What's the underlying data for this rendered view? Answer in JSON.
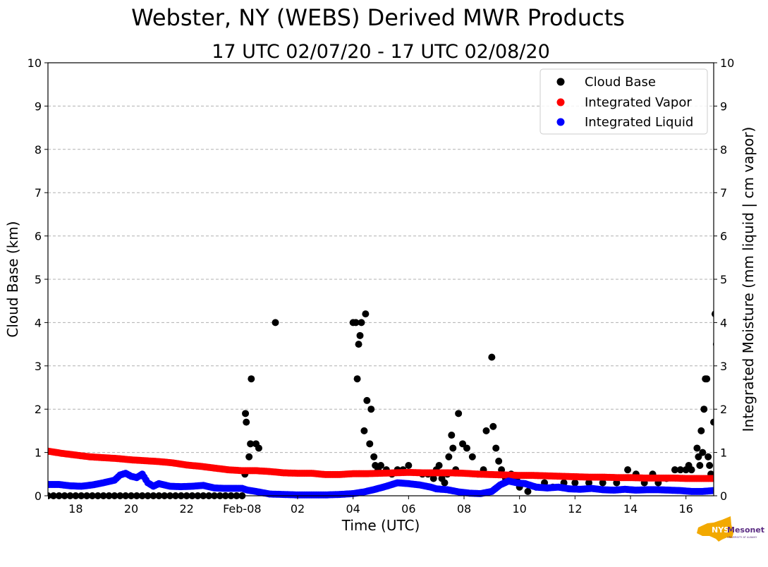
{
  "colors": {
    "cloud_base": "#000000",
    "integrated_vapor": "#ff0000",
    "integrated_liquid": "#0000ff",
    "grid": "#b0b0b0",
    "logo_state": "#f2a900",
    "logo_text": "#5b2c83"
  },
  "logo": {
    "prefix": "NYS",
    "name": "Mesonet",
    "sub": "UNIVERSITY AT ALBANY"
  },
  "chart_data": {
    "type": "scatter",
    "title": "Webster, NY (WEBS) Derived MWR Products",
    "subtitle": "17 UTC 02/07/20 - 17 UTC 02/08/20",
    "xlabel": "Time (UTC)",
    "ylabel": "Cloud Base (km)",
    "ylabel_right": "Integrated Moisture (mm liquid | cm vapor)",
    "xlim_hours": [
      17,
      41
    ],
    "ylim": [
      0,
      10
    ],
    "y2lim": [
      0,
      10
    ],
    "grid": true,
    "legend_position": "top-right",
    "x_ticks": [
      {
        "hour": 18,
        "label": "18"
      },
      {
        "hour": 20,
        "label": "20"
      },
      {
        "hour": 22,
        "label": "22"
      },
      {
        "hour": 24,
        "label": "Feb-08"
      },
      {
        "hour": 26,
        "label": "02"
      },
      {
        "hour": 28,
        "label": "04"
      },
      {
        "hour": 30,
        "label": "06"
      },
      {
        "hour": 32,
        "label": "08"
      },
      {
        "hour": 34,
        "label": "10"
      },
      {
        "hour": 36,
        "label": "12"
      },
      {
        "hour": 38,
        "label": "14"
      },
      {
        "hour": 40,
        "label": "16"
      }
    ],
    "y_ticks": [
      "0",
      "1",
      "2",
      "3",
      "4",
      "5",
      "6",
      "7",
      "8",
      "9",
      "10"
    ],
    "y2_ticks": [
      "0",
      "1",
      "2",
      "3",
      "4",
      "5",
      "6",
      "7",
      "8",
      "9",
      "10"
    ],
    "series": [
      {
        "name": "Cloud Base",
        "color": "#000000",
        "points": [
          [
            17.0,
            0
          ],
          [
            17.2,
            0
          ],
          [
            17.4,
            0
          ],
          [
            17.6,
            0
          ],
          [
            17.8,
            0
          ],
          [
            18.0,
            0
          ],
          [
            18.2,
            0
          ],
          [
            18.4,
            0
          ],
          [
            18.6,
            0
          ],
          [
            18.8,
            0
          ],
          [
            19.0,
            0
          ],
          [
            19.2,
            0
          ],
          [
            19.4,
            0
          ],
          [
            19.6,
            0
          ],
          [
            19.8,
            0
          ],
          [
            20.0,
            0
          ],
          [
            20.2,
            0
          ],
          [
            20.4,
            0
          ],
          [
            20.6,
            0
          ],
          [
            20.8,
            0
          ],
          [
            21.0,
            0
          ],
          [
            21.2,
            0
          ],
          [
            21.4,
            0
          ],
          [
            21.6,
            0
          ],
          [
            21.8,
            0
          ],
          [
            22.0,
            0
          ],
          [
            22.2,
            0
          ],
          [
            22.4,
            0
          ],
          [
            22.6,
            0
          ],
          [
            22.8,
            0
          ],
          [
            23.0,
            0
          ],
          [
            23.2,
            0
          ],
          [
            23.4,
            0
          ],
          [
            23.6,
            0
          ],
          [
            23.8,
            0
          ],
          [
            24.0,
            0
          ],
          [
            24.1,
            0.5
          ],
          [
            24.12,
            1.9
          ],
          [
            24.15,
            1.7
          ],
          [
            24.25,
            0.9
          ],
          [
            24.3,
            1.2
          ],
          [
            24.33,
            2.7
          ],
          [
            24.5,
            1.2
          ],
          [
            24.6,
            1.1
          ],
          [
            25.2,
            4.0
          ],
          [
            28.0,
            4.0
          ],
          [
            28.1,
            4.0
          ],
          [
            28.15,
            2.7
          ],
          [
            28.2,
            3.5
          ],
          [
            28.25,
            3.7
          ],
          [
            28.3,
            4.0
          ],
          [
            28.4,
            1.5
          ],
          [
            28.45,
            4.2
          ],
          [
            28.5,
            2.2
          ],
          [
            28.6,
            1.2
          ],
          [
            28.65,
            2.0
          ],
          [
            28.75,
            0.9
          ],
          [
            28.8,
            0.7
          ],
          [
            28.9,
            0.6
          ],
          [
            29.0,
            0.7
          ],
          [
            29.2,
            0.6
          ],
          [
            29.4,
            0.5
          ],
          [
            29.6,
            0.6
          ],
          [
            29.8,
            0.6
          ],
          [
            30.0,
            0.7
          ],
          [
            30.5,
            0.5
          ],
          [
            30.7,
            0.5
          ],
          [
            30.9,
            0.4
          ],
          [
            31.0,
            0.6
          ],
          [
            31.1,
            0.7
          ],
          [
            31.2,
            0.4
          ],
          [
            31.3,
            0.3
          ],
          [
            31.4,
            0.5
          ],
          [
            31.45,
            0.9
          ],
          [
            31.55,
            1.4
          ],
          [
            31.6,
            1.1
          ],
          [
            31.7,
            0.6
          ],
          [
            31.8,
            1.9
          ],
          [
            31.95,
            1.2
          ],
          [
            32.1,
            1.1
          ],
          [
            32.3,
            0.9
          ],
          [
            32.5,
            0.5
          ],
          [
            32.7,
            0.6
          ],
          [
            32.8,
            1.5
          ],
          [
            33.0,
            3.2
          ],
          [
            33.05,
            1.6
          ],
          [
            33.15,
            1.1
          ],
          [
            33.25,
            0.8
          ],
          [
            33.35,
            0.6
          ],
          [
            33.5,
            0.4
          ],
          [
            33.7,
            0.5
          ],
          [
            33.9,
            0.4
          ],
          [
            34.0,
            0.2
          ],
          [
            34.3,
            0.1
          ],
          [
            34.6,
            0.2
          ],
          [
            34.9,
            0.3
          ],
          [
            35.2,
            0.2
          ],
          [
            35.6,
            0.3
          ],
          [
            36.0,
            0.3
          ],
          [
            36.5,
            0.3
          ],
          [
            37.0,
            0.3
          ],
          [
            37.5,
            0.3
          ],
          [
            37.9,
            0.6
          ],
          [
            38.2,
            0.5
          ],
          [
            38.5,
            0.3
          ],
          [
            38.8,
            0.5
          ],
          [
            39.0,
            0.3
          ],
          [
            39.3,
            0.4
          ],
          [
            39.6,
            0.6
          ],
          [
            39.8,
            0.6
          ],
          [
            40.0,
            0.6
          ],
          [
            40.1,
            0.7
          ],
          [
            40.2,
            0.6
          ],
          [
            40.4,
            1.1
          ],
          [
            40.45,
            0.9
          ],
          [
            40.5,
            0.7
          ],
          [
            40.55,
            1.5
          ],
          [
            40.6,
            1.0
          ],
          [
            40.65,
            2.0
          ],
          [
            40.7,
            2.7
          ],
          [
            40.75,
            2.7
          ],
          [
            40.8,
            0.9
          ],
          [
            40.85,
            0.7
          ],
          [
            40.9,
            0.5
          ],
          [
            41.0,
            1.7
          ],
          [
            41.05,
            4.2
          ],
          [
            41.1,
            3.5
          ],
          [
            41.15,
            2.0
          ],
          [
            41.2,
            2.7
          ],
          [
            41.25,
            2.7
          ],
          [
            41.3,
            3.5
          ],
          [
            41.35,
            1.5
          ],
          [
            41.45,
            0.9
          ],
          [
            41.55,
            0.8
          ],
          [
            41.6,
            0.5
          ],
          [
            41.7,
            1.0
          ],
          [
            41.8,
            0.5
          ],
          [
            41.9,
            1.1
          ],
          [
            41.95,
            3.5
          ]
        ]
      },
      {
        "name": "Integrated Vapor",
        "color": "#ff0000",
        "points": [
          [
            17.0,
            1.03
          ],
          [
            17.5,
            0.98
          ],
          [
            18.0,
            0.94
          ],
          [
            18.5,
            0.9
          ],
          [
            19.0,
            0.88
          ],
          [
            19.5,
            0.86
          ],
          [
            20.0,
            0.83
          ],
          [
            20.5,
            0.81
          ],
          [
            21.0,
            0.79
          ],
          [
            21.5,
            0.76
          ],
          [
            22.0,
            0.71
          ],
          [
            22.5,
            0.68
          ],
          [
            23.0,
            0.64
          ],
          [
            23.5,
            0.6
          ],
          [
            24.0,
            0.58
          ],
          [
            24.5,
            0.58
          ],
          [
            25.0,
            0.56
          ],
          [
            25.5,
            0.53
          ],
          [
            26.0,
            0.52
          ],
          [
            26.5,
            0.52
          ],
          [
            27.0,
            0.49
          ],
          [
            27.5,
            0.49
          ],
          [
            28.0,
            0.51
          ],
          [
            28.5,
            0.51
          ],
          [
            29.0,
            0.52
          ],
          [
            29.5,
            0.53
          ],
          [
            30.0,
            0.54
          ],
          [
            30.5,
            0.53
          ],
          [
            31.0,
            0.53
          ],
          [
            31.5,
            0.53
          ],
          [
            32.0,
            0.52
          ],
          [
            32.5,
            0.5
          ],
          [
            33.0,
            0.49
          ],
          [
            33.5,
            0.48
          ],
          [
            34.0,
            0.47
          ],
          [
            34.5,
            0.47
          ],
          [
            35.0,
            0.46
          ],
          [
            35.5,
            0.45
          ],
          [
            36.0,
            0.44
          ],
          [
            36.5,
            0.43
          ],
          [
            37.0,
            0.43
          ],
          [
            37.5,
            0.42
          ],
          [
            38.0,
            0.42
          ],
          [
            38.5,
            0.41
          ],
          [
            39.0,
            0.41
          ],
          [
            39.5,
            0.41
          ],
          [
            40.0,
            0.4
          ],
          [
            40.5,
            0.4
          ],
          [
            41.0,
            0.4
          ],
          [
            41.5,
            0.39
          ],
          [
            42.0,
            0.38
          ]
        ]
      },
      {
        "name": "Integrated Liquid",
        "color": "#0000ff",
        "points": [
          [
            17.0,
            0.26
          ],
          [
            17.4,
            0.26
          ],
          [
            17.8,
            0.23
          ],
          [
            18.2,
            0.22
          ],
          [
            18.6,
            0.25
          ],
          [
            19.0,
            0.3
          ],
          [
            19.4,
            0.36
          ],
          [
            19.6,
            0.48
          ],
          [
            19.8,
            0.52
          ],
          [
            20.0,
            0.45
          ],
          [
            20.2,
            0.42
          ],
          [
            20.4,
            0.5
          ],
          [
            20.6,
            0.3
          ],
          [
            20.8,
            0.22
          ],
          [
            21.0,
            0.28
          ],
          [
            21.4,
            0.22
          ],
          [
            21.8,
            0.21
          ],
          [
            22.2,
            0.22
          ],
          [
            22.6,
            0.24
          ],
          [
            23.0,
            0.18
          ],
          [
            23.4,
            0.17
          ],
          [
            23.8,
            0.17
          ],
          [
            24.0,
            0.17
          ],
          [
            24.2,
            0.13
          ],
          [
            24.5,
            0.1
          ],
          [
            25.0,
            0.04
          ],
          [
            25.5,
            0.03
          ],
          [
            26.0,
            0.02
          ],
          [
            26.5,
            0.02
          ],
          [
            27.0,
            0.02
          ],
          [
            27.5,
            0.03
          ],
          [
            28.0,
            0.05
          ],
          [
            28.4,
            0.09
          ],
          [
            28.8,
            0.15
          ],
          [
            29.2,
            0.22
          ],
          [
            29.6,
            0.3
          ],
          [
            30.0,
            0.28
          ],
          [
            30.4,
            0.25
          ],
          [
            30.8,
            0.2
          ],
          [
            31.0,
            0.16
          ],
          [
            31.4,
            0.14
          ],
          [
            31.8,
            0.09
          ],
          [
            32.2,
            0.06
          ],
          [
            32.6,
            0.05
          ],
          [
            33.0,
            0.1
          ],
          [
            33.3,
            0.25
          ],
          [
            33.6,
            0.34
          ],
          [
            33.9,
            0.3
          ],
          [
            34.2,
            0.28
          ],
          [
            34.6,
            0.2
          ],
          [
            35.0,
            0.18
          ],
          [
            35.4,
            0.2
          ],
          [
            35.8,
            0.16
          ],
          [
            36.2,
            0.15
          ],
          [
            36.6,
            0.17
          ],
          [
            37.0,
            0.14
          ],
          [
            37.4,
            0.13
          ],
          [
            37.8,
            0.15
          ],
          [
            38.2,
            0.13
          ],
          [
            38.6,
            0.14
          ],
          [
            39.0,
            0.14
          ],
          [
            39.4,
            0.13
          ],
          [
            39.8,
            0.12
          ],
          [
            40.2,
            0.1
          ],
          [
            40.6,
            0.1
          ],
          [
            41.0,
            0.12
          ],
          [
            41.4,
            0.1
          ],
          [
            41.8,
            0.09
          ],
          [
            42.0,
            0.08
          ]
        ]
      }
    ]
  }
}
